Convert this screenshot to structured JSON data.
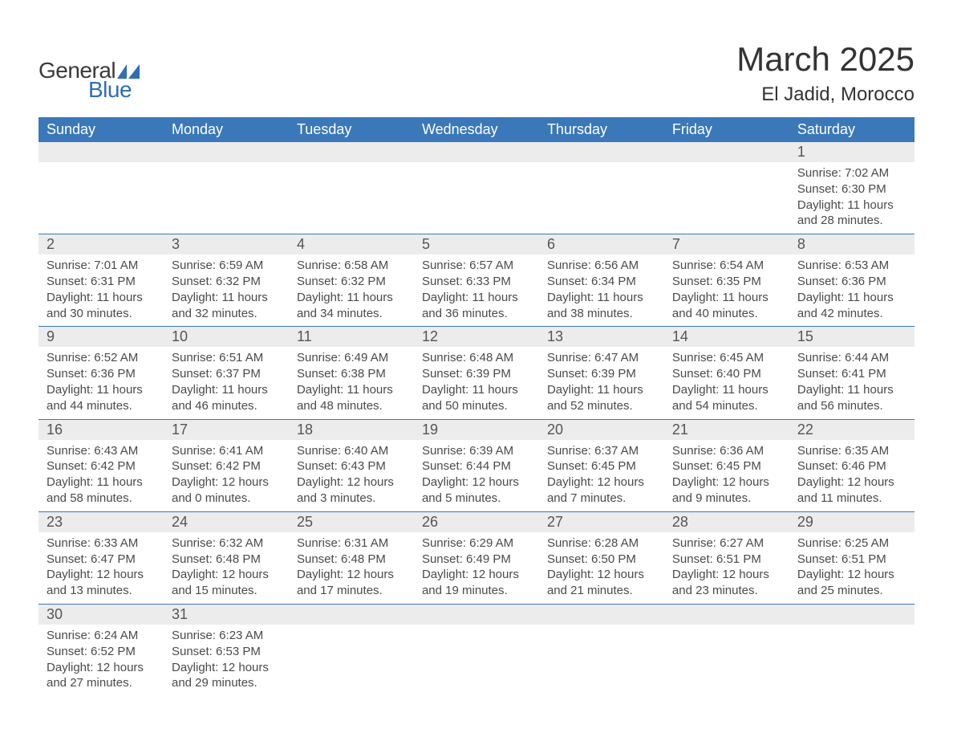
{
  "logo": {
    "text_general": "General",
    "text_blue": "Blue",
    "shape_color": "#2e6fb5"
  },
  "title": {
    "month": "March 2025",
    "location": "El Jadid, Morocco"
  },
  "colors": {
    "header_bg": "#3a78b9",
    "header_text": "#ffffff",
    "daynum_bg": "#ececec",
    "body_text": "#4a4a4a",
    "row_border": "#3a78b9"
  },
  "fonts": {
    "family": "Arial",
    "month_title_pt": 42,
    "location_pt": 24,
    "header_pt": 18,
    "daynum_pt": 18,
    "details_pt": 15
  },
  "weekdays": [
    "Sunday",
    "Monday",
    "Tuesday",
    "Wednesday",
    "Thursday",
    "Friday",
    "Saturday"
  ],
  "weeks": [
    [
      null,
      null,
      null,
      null,
      null,
      null,
      {
        "day": "1",
        "sunrise": "Sunrise: 7:02 AM",
        "sunset": "Sunset: 6:30 PM",
        "daylight": "Daylight: 11 hours and 28 minutes."
      }
    ],
    [
      {
        "day": "2",
        "sunrise": "Sunrise: 7:01 AM",
        "sunset": "Sunset: 6:31 PM",
        "daylight": "Daylight: 11 hours and 30 minutes."
      },
      {
        "day": "3",
        "sunrise": "Sunrise: 6:59 AM",
        "sunset": "Sunset: 6:32 PM",
        "daylight": "Daylight: 11 hours and 32 minutes."
      },
      {
        "day": "4",
        "sunrise": "Sunrise: 6:58 AM",
        "sunset": "Sunset: 6:32 PM",
        "daylight": "Daylight: 11 hours and 34 minutes."
      },
      {
        "day": "5",
        "sunrise": "Sunrise: 6:57 AM",
        "sunset": "Sunset: 6:33 PM",
        "daylight": "Daylight: 11 hours and 36 minutes."
      },
      {
        "day": "6",
        "sunrise": "Sunrise: 6:56 AM",
        "sunset": "Sunset: 6:34 PM",
        "daylight": "Daylight: 11 hours and 38 minutes."
      },
      {
        "day": "7",
        "sunrise": "Sunrise: 6:54 AM",
        "sunset": "Sunset: 6:35 PM",
        "daylight": "Daylight: 11 hours and 40 minutes."
      },
      {
        "day": "8",
        "sunrise": "Sunrise: 6:53 AM",
        "sunset": "Sunset: 6:36 PM",
        "daylight": "Daylight: 11 hours and 42 minutes."
      }
    ],
    [
      {
        "day": "9",
        "sunrise": "Sunrise: 6:52 AM",
        "sunset": "Sunset: 6:36 PM",
        "daylight": "Daylight: 11 hours and 44 minutes."
      },
      {
        "day": "10",
        "sunrise": "Sunrise: 6:51 AM",
        "sunset": "Sunset: 6:37 PM",
        "daylight": "Daylight: 11 hours and 46 minutes."
      },
      {
        "day": "11",
        "sunrise": "Sunrise: 6:49 AM",
        "sunset": "Sunset: 6:38 PM",
        "daylight": "Daylight: 11 hours and 48 minutes."
      },
      {
        "day": "12",
        "sunrise": "Sunrise: 6:48 AM",
        "sunset": "Sunset: 6:39 PM",
        "daylight": "Daylight: 11 hours and 50 minutes."
      },
      {
        "day": "13",
        "sunrise": "Sunrise: 6:47 AM",
        "sunset": "Sunset: 6:39 PM",
        "daylight": "Daylight: 11 hours and 52 minutes."
      },
      {
        "day": "14",
        "sunrise": "Sunrise: 6:45 AM",
        "sunset": "Sunset: 6:40 PM",
        "daylight": "Daylight: 11 hours and 54 minutes."
      },
      {
        "day": "15",
        "sunrise": "Sunrise: 6:44 AM",
        "sunset": "Sunset: 6:41 PM",
        "daylight": "Daylight: 11 hours and 56 minutes."
      }
    ],
    [
      {
        "day": "16",
        "sunrise": "Sunrise: 6:43 AM",
        "sunset": "Sunset: 6:42 PM",
        "daylight": "Daylight: 11 hours and 58 minutes."
      },
      {
        "day": "17",
        "sunrise": "Sunrise: 6:41 AM",
        "sunset": "Sunset: 6:42 PM",
        "daylight": "Daylight: 12 hours and 0 minutes."
      },
      {
        "day": "18",
        "sunrise": "Sunrise: 6:40 AM",
        "sunset": "Sunset: 6:43 PM",
        "daylight": "Daylight: 12 hours and 3 minutes."
      },
      {
        "day": "19",
        "sunrise": "Sunrise: 6:39 AM",
        "sunset": "Sunset: 6:44 PM",
        "daylight": "Daylight: 12 hours and 5 minutes."
      },
      {
        "day": "20",
        "sunrise": "Sunrise: 6:37 AM",
        "sunset": "Sunset: 6:45 PM",
        "daylight": "Daylight: 12 hours and 7 minutes."
      },
      {
        "day": "21",
        "sunrise": "Sunrise: 6:36 AM",
        "sunset": "Sunset: 6:45 PM",
        "daylight": "Daylight: 12 hours and 9 minutes."
      },
      {
        "day": "22",
        "sunrise": "Sunrise: 6:35 AM",
        "sunset": "Sunset: 6:46 PM",
        "daylight": "Daylight: 12 hours and 11 minutes."
      }
    ],
    [
      {
        "day": "23",
        "sunrise": "Sunrise: 6:33 AM",
        "sunset": "Sunset: 6:47 PM",
        "daylight": "Daylight: 12 hours and 13 minutes."
      },
      {
        "day": "24",
        "sunrise": "Sunrise: 6:32 AM",
        "sunset": "Sunset: 6:48 PM",
        "daylight": "Daylight: 12 hours and 15 minutes."
      },
      {
        "day": "25",
        "sunrise": "Sunrise: 6:31 AM",
        "sunset": "Sunset: 6:48 PM",
        "daylight": "Daylight: 12 hours and 17 minutes."
      },
      {
        "day": "26",
        "sunrise": "Sunrise: 6:29 AM",
        "sunset": "Sunset: 6:49 PM",
        "daylight": "Daylight: 12 hours and 19 minutes."
      },
      {
        "day": "27",
        "sunrise": "Sunrise: 6:28 AM",
        "sunset": "Sunset: 6:50 PM",
        "daylight": "Daylight: 12 hours and 21 minutes."
      },
      {
        "day": "28",
        "sunrise": "Sunrise: 6:27 AM",
        "sunset": "Sunset: 6:51 PM",
        "daylight": "Daylight: 12 hours and 23 minutes."
      },
      {
        "day": "29",
        "sunrise": "Sunrise: 6:25 AM",
        "sunset": "Sunset: 6:51 PM",
        "daylight": "Daylight: 12 hours and 25 minutes."
      }
    ],
    [
      {
        "day": "30",
        "sunrise": "Sunrise: 6:24 AM",
        "sunset": "Sunset: 6:52 PM",
        "daylight": "Daylight: 12 hours and 27 minutes."
      },
      {
        "day": "31",
        "sunrise": "Sunrise: 6:23 AM",
        "sunset": "Sunset: 6:53 PM",
        "daylight": "Daylight: 12 hours and 29 minutes."
      },
      null,
      null,
      null,
      null,
      null
    ]
  ]
}
